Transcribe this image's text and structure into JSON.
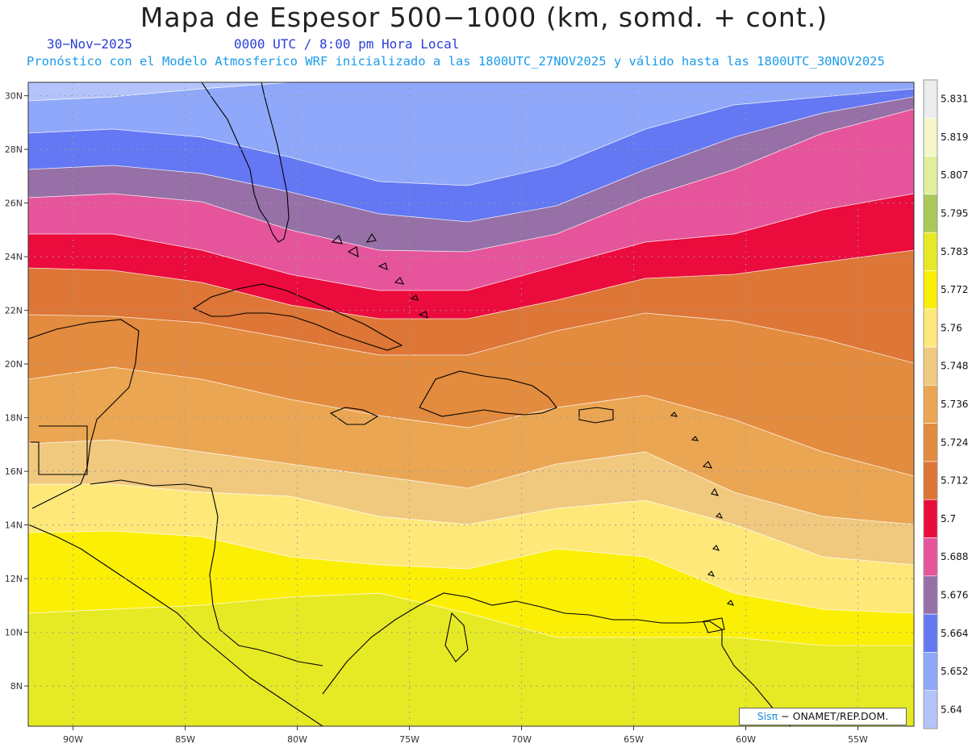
{
  "title": "Mapa de Espesor 500−1000 (km, somd. + cont.)",
  "date": "30−Nov−2025",
  "time": "0000 UTC / 8:00 pm Hora Local",
  "model_info": "Pronóstico con el Modelo Atmosferico WRF inicializado a las 1800UTC_27NOV2025 y válido hasta las  1800UTC_30NOV2025",
  "credit": {
    "brand": "Sisπ",
    "text": "− ONAMET/REP.DOM."
  },
  "map": {
    "lon_range": [
      -92,
      -52.5
    ],
    "lat_range": [
      6.5,
      30.5
    ],
    "lat_ticks": [
      "30N",
      "28N",
      "26N",
      "24N",
      "22N",
      "20N",
      "18N",
      "16N",
      "14N",
      "12N",
      "10N",
      "8N"
    ],
    "lon_ticks": [
      "90W",
      "85W",
      "80W",
      "75W",
      "70W",
      "65W",
      "60W",
      "55W"
    ],
    "grid": "dotted",
    "bands_high_to_low_lat": [
      {
        "level": 5.64,
        "color": "#b4c4fb"
      },
      {
        "level": 5.652,
        "color": "#8fa8fa"
      },
      {
        "level": 5.664,
        "color": "#6478f4"
      },
      {
        "level": 5.676,
        "color": "#9670a6"
      },
      {
        "level": 5.688,
        "color": "#e6559b"
      },
      {
        "level": 5.7,
        "color": "#ec0b3d"
      },
      {
        "level": 5.712,
        "color": "#dd7636"
      },
      {
        "level": 5.724,
        "color": "#e38b3e"
      },
      {
        "level": 5.736,
        "color": "#eba653"
      },
      {
        "level": 5.748,
        "color": "#f0c97e"
      },
      {
        "level": 5.76,
        "color": "#fee87a"
      },
      {
        "level": 5.772,
        "color": "#fcef06"
      },
      {
        "level": 5.783,
        "color": "#e6ea24"
      }
    ]
  },
  "colorbar": {
    "levels": [
      "5.831",
      "5.819",
      "5.807",
      "5.795",
      "5.783",
      "5.772",
      "5.76",
      "5.748",
      "5.736",
      "5.724",
      "5.712",
      "5.7",
      "5.688",
      "5.676",
      "5.664",
      "5.652",
      "5.64"
    ],
    "colors": [
      "#ececec",
      "#f5f7c8",
      "#e0f09a",
      "#a9c95a",
      "#e6ea24",
      "#fcef06",
      "#fee87a",
      "#f0c97e",
      "#eba653",
      "#e38b3e",
      "#dd7636",
      "#ec0b3d",
      "#e6559b",
      "#9670a6",
      "#6478f4",
      "#8fa8fa",
      "#b4c4fb"
    ]
  }
}
